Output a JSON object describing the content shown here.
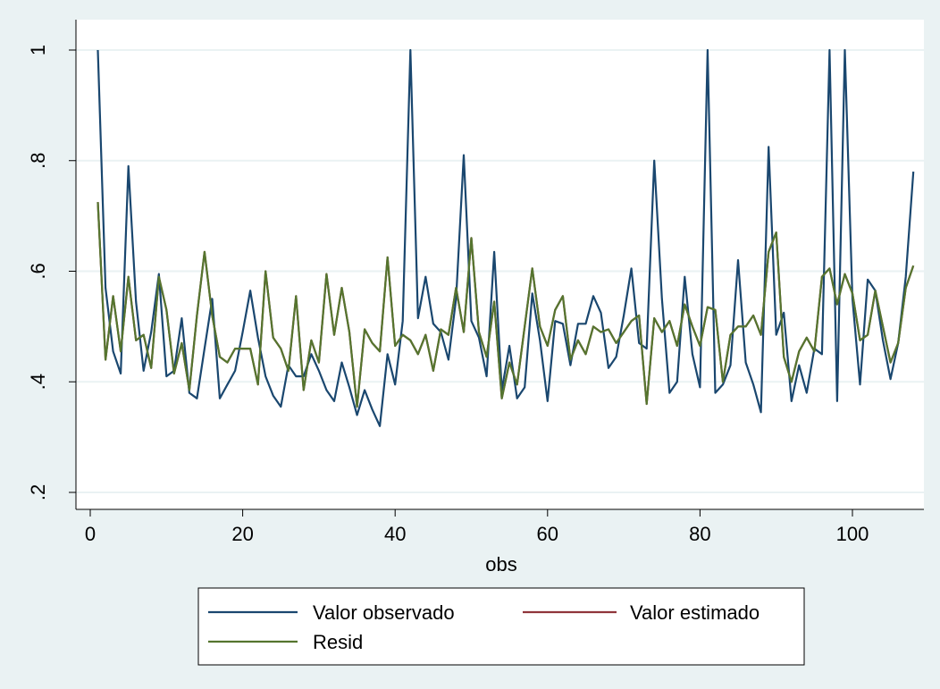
{
  "chart_data": {
    "type": "line",
    "title": "",
    "xlabel": "obs",
    "ylabel": "",
    "xlim": [
      0,
      110
    ],
    "ylim": [
      0.2,
      1.0
    ],
    "xticks": [
      0,
      20,
      40,
      60,
      80,
      100
    ],
    "yticks": [
      0.2,
      0.4,
      0.6,
      0.8,
      1.0
    ],
    "ytick_labels": [
      ".2",
      ".4",
      ".6",
      ".8",
      "1"
    ],
    "grid": "horizontal",
    "legend": {
      "position": "bottom",
      "entries": [
        "Valor observado",
        "Valor estimado",
        "Resid"
      ]
    },
    "series": [
      {
        "name": "Valor observado",
        "color": "#1a476f",
        "x": [
          1,
          2,
          3,
          4,
          5,
          6,
          7,
          8,
          9,
          10,
          11,
          12,
          13,
          14,
          15,
          16,
          17,
          18,
          19,
          20,
          21,
          22,
          23,
          24,
          25,
          26,
          27,
          28,
          29,
          30,
          31,
          32,
          33,
          34,
          35,
          36,
          37,
          38,
          39,
          40,
          41,
          42,
          43,
          44,
          45,
          46,
          47,
          48,
          49,
          50,
          51,
          52,
          53,
          54,
          55,
          56,
          57,
          58,
          59,
          60,
          61,
          62,
          63,
          64,
          65,
          66,
          67,
          68,
          69,
          70,
          71,
          72,
          73,
          74,
          75,
          76,
          77,
          78,
          79,
          80,
          81,
          82,
          83,
          84,
          85,
          86,
          87,
          88,
          89,
          90,
          91,
          92,
          93,
          94,
          95,
          96,
          97,
          98,
          99,
          100,
          101,
          102,
          103,
          104,
          105,
          106,
          107,
          108
        ],
        "values": [
          1.0,
          0.57,
          0.455,
          0.415,
          0.79,
          0.545,
          0.42,
          0.49,
          0.595,
          0.41,
          0.42,
          0.515,
          0.38,
          0.37,
          0.46,
          0.55,
          0.37,
          0.395,
          0.42,
          0.49,
          0.565,
          0.48,
          0.41,
          0.375,
          0.355,
          0.43,
          0.41,
          0.41,
          0.45,
          0.42,
          0.385,
          0.365,
          0.435,
          0.39,
          0.34,
          0.385,
          0.35,
          0.32,
          0.45,
          0.395,
          0.51,
          1.0,
          0.515,
          0.59,
          0.505,
          0.49,
          0.44,
          0.55,
          0.81,
          0.51,
          0.48,
          0.41,
          0.635,
          0.385,
          0.465,
          0.37,
          0.39,
          0.56,
          0.475,
          0.365,
          0.51,
          0.505,
          0.43,
          0.505,
          0.505,
          0.555,
          0.525,
          0.425,
          0.445,
          0.52,
          0.605,
          0.47,
          0.46,
          0.8,
          0.55,
          0.38,
          0.4,
          0.59,
          0.45,
          0.39,
          1.0,
          0.38,
          0.395,
          0.43,
          0.62,
          0.435,
          0.395,
          0.345,
          0.825,
          0.485,
          0.525,
          0.365,
          0.43,
          0.38,
          0.46,
          0.45,
          1.0,
          0.365,
          1.0,
          0.55,
          0.395,
          0.585,
          0.565,
          0.475,
          0.405,
          0.47,
          0.59,
          0.78
        ]
      },
      {
        "name": "Valor estimado",
        "color": "#90353b",
        "x": [
          1,
          2,
          3,
          4,
          5,
          6,
          7,
          8,
          9,
          10,
          11,
          12,
          13,
          14,
          15,
          16,
          17,
          18,
          19,
          20,
          21,
          22,
          23,
          24,
          25,
          26,
          27,
          28,
          29,
          30,
          31,
          32,
          33,
          34,
          35,
          36,
          37,
          38,
          39,
          40,
          41,
          42,
          43,
          44,
          45,
          46,
          47,
          48,
          49,
          50,
          51,
          52,
          53,
          54,
          55,
          56,
          57,
          58,
          59,
          60,
          61,
          62,
          63,
          64,
          65,
          66,
          67,
          68,
          69,
          70,
          71,
          72,
          73,
          74,
          75,
          76,
          77,
          78,
          79,
          80,
          81,
          82,
          83,
          84,
          85,
          86,
          87,
          88,
          89,
          90,
          91,
          92,
          93,
          94,
          95,
          96,
          97,
          98,
          99,
          100,
          101,
          102,
          103,
          104,
          105,
          106,
          107,
          108
        ],
        "values": [
          0.725,
          0.44,
          0.555,
          0.455,
          0.59,
          0.475,
          0.485,
          0.425,
          0.59,
          0.53,
          0.415,
          0.47,
          0.385,
          0.52,
          0.635,
          0.52,
          0.445,
          0.435,
          0.46,
          0.46,
          0.46,
          0.395,
          0.6,
          0.48,
          0.46,
          0.42,
          0.555,
          0.385,
          0.475,
          0.435,
          0.595,
          0.485,
          0.57,
          0.49,
          0.355,
          0.495,
          0.47,
          0.455,
          0.625,
          0.465,
          0.485,
          0.475,
          0.45,
          0.485,
          0.42,
          0.495,
          0.485,
          0.57,
          0.49,
          0.66,
          0.49,
          0.445,
          0.545,
          0.37,
          0.435,
          0.395,
          0.5,
          0.605,
          0.5,
          0.465,
          0.53,
          0.555,
          0.44,
          0.475,
          0.45,
          0.5,
          0.49,
          0.495,
          0.47,
          0.49,
          0.51,
          0.52,
          0.36,
          0.515,
          0.49,
          0.51,
          0.465,
          0.54,
          0.5,
          0.465,
          0.535,
          0.53,
          0.4,
          0.485,
          0.5,
          0.5,
          0.52,
          0.485,
          0.635,
          0.67,
          0.445,
          0.4,
          0.455,
          0.48,
          0.455,
          0.59,
          0.605,
          0.54,
          0.595,
          0.56,
          0.475,
          0.485,
          0.565,
          0.5,
          0.435,
          0.47,
          0.57,
          0.61
        ]
      },
      {
        "name": "Resid",
        "color": "#55752f",
        "x": [
          1,
          2,
          3,
          4,
          5,
          6,
          7,
          8,
          9,
          10,
          11,
          12,
          13,
          14,
          15,
          16,
          17,
          18,
          19,
          20,
          21,
          22,
          23,
          24,
          25,
          26,
          27,
          28,
          29,
          30,
          31,
          32,
          33,
          34,
          35,
          36,
          37,
          38,
          39,
          40,
          41,
          42,
          43,
          44,
          45,
          46,
          47,
          48,
          49,
          50,
          51,
          52,
          53,
          54,
          55,
          56,
          57,
          58,
          59,
          60,
          61,
          62,
          63,
          64,
          65,
          66,
          67,
          68,
          69,
          70,
          71,
          72,
          73,
          74,
          75,
          76,
          77,
          78,
          79,
          80,
          81,
          82,
          83,
          84,
          85,
          86,
          87,
          88,
          89,
          90,
          91,
          92,
          93,
          94,
          95,
          96,
          97,
          98,
          99,
          100,
          101,
          102,
          103,
          104,
          105,
          106,
          107,
          108
        ],
        "values": [
          0.725,
          0.44,
          0.555,
          0.455,
          0.59,
          0.475,
          0.485,
          0.425,
          0.59,
          0.53,
          0.415,
          0.47,
          0.385,
          0.52,
          0.635,
          0.52,
          0.445,
          0.435,
          0.46,
          0.46,
          0.46,
          0.395,
          0.6,
          0.48,
          0.46,
          0.42,
          0.555,
          0.385,
          0.475,
          0.435,
          0.595,
          0.485,
          0.57,
          0.49,
          0.355,
          0.495,
          0.47,
          0.455,
          0.625,
          0.465,
          0.485,
          0.475,
          0.45,
          0.485,
          0.42,
          0.495,
          0.485,
          0.57,
          0.49,
          0.66,
          0.49,
          0.445,
          0.545,
          0.37,
          0.435,
          0.395,
          0.5,
          0.605,
          0.5,
          0.465,
          0.53,
          0.555,
          0.44,
          0.475,
          0.45,
          0.5,
          0.49,
          0.495,
          0.47,
          0.49,
          0.51,
          0.52,
          0.36,
          0.515,
          0.49,
          0.51,
          0.465,
          0.54,
          0.5,
          0.465,
          0.535,
          0.53,
          0.4,
          0.485,
          0.5,
          0.5,
          0.52,
          0.485,
          0.635,
          0.67,
          0.445,
          0.4,
          0.455,
          0.48,
          0.455,
          0.59,
          0.605,
          0.54,
          0.595,
          0.56,
          0.475,
          0.485,
          0.565,
          0.5,
          0.435,
          0.47,
          0.57,
          0.61
        ]
      }
    ]
  }
}
